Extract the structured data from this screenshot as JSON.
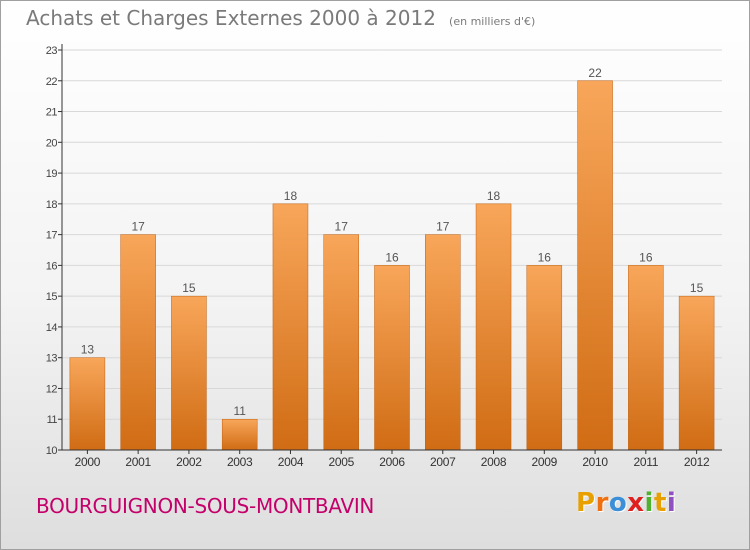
{
  "title": {
    "main": "Achats et Charges Externes 2000 à 2012",
    "unit": "(en milliers d'€)"
  },
  "commune": "BOURGUIGNON-SOUS-MONTBAVIN",
  "brand": {
    "text": "Proxiti",
    "letters": [
      "P",
      "r",
      "o",
      "x",
      "i",
      "t",
      "i"
    ]
  },
  "colors": {
    "bar_light": "#f8a65a",
    "bar_dark": "#d06c14",
    "axis": "#333333",
    "grid": "#d8d8d8",
    "title": "#7a7a7a",
    "commune": "#c4006a",
    "brand": [
      "#e8a000",
      "#f07010",
      "#3a8fd8",
      "#e02020",
      "#50b030",
      "#e8a000",
      "#9050c0"
    ]
  },
  "chart_data": {
    "type": "bar",
    "title": "Achats et Charges Externes 2000 à 2012",
    "subtitle": "(en milliers d'€)",
    "xlabel": "",
    "ylabel": "",
    "ylim": [
      10,
      23
    ],
    "yticks": [
      10,
      11,
      12,
      13,
      14,
      15,
      16,
      17,
      18,
      19,
      20,
      21,
      22,
      23
    ],
    "grid": true,
    "categories": [
      "2000",
      "2001",
      "2002",
      "2003",
      "2004",
      "2005",
      "2006",
      "2007",
      "2008",
      "2009",
      "2010",
      "2011",
      "2012"
    ],
    "values": [
      13,
      17,
      15,
      11,
      18,
      17,
      16,
      17,
      18,
      16,
      22,
      16,
      15
    ]
  }
}
